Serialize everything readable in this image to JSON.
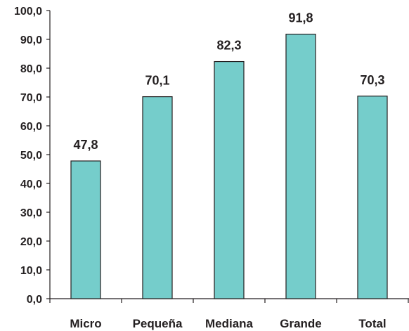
{
  "chart_data": {
    "type": "bar",
    "categories": [
      "Micro",
      "Pequeña",
      "Mediana",
      "Grande",
      "Total"
    ],
    "values": [
      47.8,
      70.1,
      82.3,
      91.8,
      70.3
    ],
    "data_labels": [
      "47,8",
      "70,1",
      "82,3",
      "91,8",
      "70,3"
    ],
    "y_tick_labels": [
      "0,0",
      "10,0",
      "20,0",
      "30,0",
      "40,0",
      "50,0",
      "60,0",
      "70,0",
      "80,0",
      "90,0",
      "100,0"
    ],
    "ylim": [
      0,
      100
    ],
    "y_tick_step": 10,
    "grid": false,
    "legend": "none",
    "bar_color": "#75cdcb",
    "bar_edge_color": "#231f20",
    "axis_color": "#231f20"
  }
}
